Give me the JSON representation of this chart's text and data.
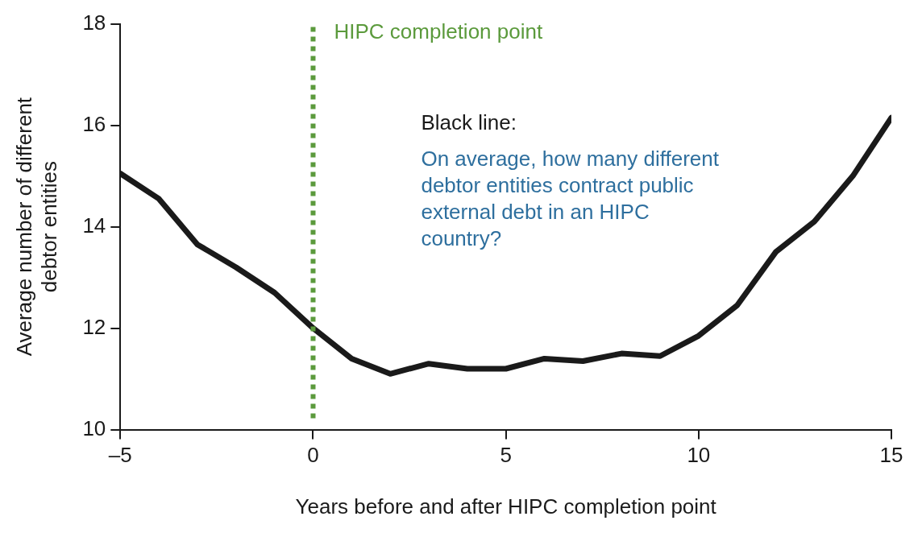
{
  "chart_data": {
    "type": "line",
    "xlabel": "Years before and after HIPC completion point",
    "ylabel": "Average number of different debtor entities",
    "x": [
      -5,
      -4,
      -3,
      -2,
      -1,
      0,
      1,
      2,
      3,
      4,
      5,
      6,
      7,
      8,
      9,
      10,
      11,
      12,
      13,
      14,
      15
    ],
    "series": [
      {
        "color": "#1a1a1a",
        "values": [
          15.05,
          14.55,
          13.65,
          13.2,
          12.7,
          12.0,
          11.4,
          11.1,
          11.3,
          11.2,
          11.2,
          11.4,
          11.35,
          11.5,
          11.45,
          11.85,
          12.45,
          13.5,
          14.1,
          15.0,
          16.15
        ]
      }
    ],
    "xlim": [
      -5,
      15
    ],
    "xticks": [
      {
        "value": -5,
        "label": "–5"
      },
      0,
      5,
      10,
      15
    ],
    "ylim": [
      10,
      18
    ],
    "yticks": [
      10,
      12,
      14,
      16,
      18
    ],
    "grid": false,
    "legend": false,
    "marker": "none",
    "line_style": "solid",
    "ref_lines": [
      {
        "axis": "x",
        "value": 0,
        "label": "HIPC completion point",
        "color": "#5b9a3c",
        "line_style": "dotted"
      }
    ],
    "annotations": [
      "Black line:",
      "On average, how many different debtor entities contract public external debt in an HIPC country?"
    ]
  }
}
